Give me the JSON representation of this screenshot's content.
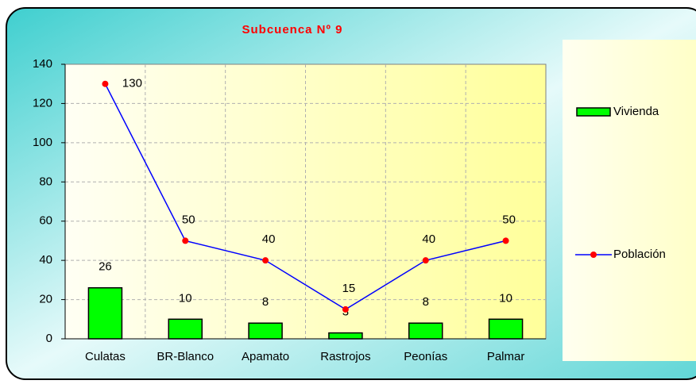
{
  "chart_data": {
    "type": "bar-line",
    "title": "Subcuenca Nº 9",
    "categories": [
      "Culatas",
      "BR-Blanco",
      "Apamato",
      "Rastrojos",
      "Peonías",
      "Palmar"
    ],
    "series": [
      {
        "name": "Vivienda",
        "type": "bar",
        "color": "#00ff00",
        "values": [
          26,
          10,
          8,
          3,
          8,
          10
        ]
      },
      {
        "name": "Población",
        "type": "line",
        "color": "#0000ff",
        "marker_color": "#ff0000",
        "values": [
          130,
          50,
          40,
          15,
          40,
          50
        ]
      }
    ],
    "ylim": [
      0,
      140
    ],
    "yticks": [
      0,
      20,
      40,
      60,
      80,
      100,
      120,
      140
    ],
    "grid": true,
    "legend": "right"
  }
}
